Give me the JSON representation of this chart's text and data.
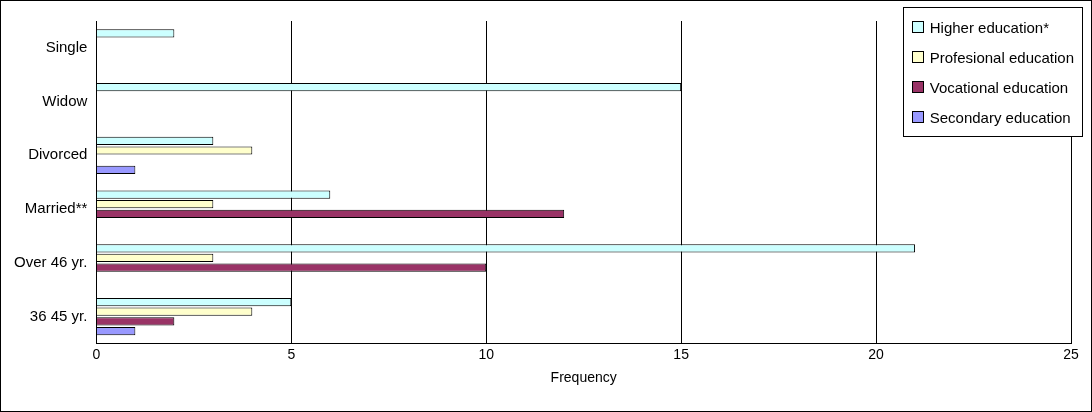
{
  "chart_data": {
    "type": "bar",
    "orientation": "horizontal",
    "xlabel": "Frequency",
    "categories": [
      "Single",
      "Widow",
      "Divorced",
      "Married**",
      "Over 46 yr.",
      "36 45 yr."
    ],
    "series": [
      {
        "name": "Higher education*",
        "color": "#ccffff",
        "values": [
          2,
          15,
          3,
          6,
          21,
          5
        ]
      },
      {
        "name": "Profesional education",
        "color": "#ffffcc",
        "values": [
          null,
          null,
          4,
          3,
          3,
          4
        ]
      },
      {
        "name": "Vocational education",
        "color": "#993366",
        "values": [
          null,
          null,
          null,
          12,
          10,
          2
        ]
      },
      {
        "name": "Secondary education",
        "color": "#9999ff",
        "values": [
          null,
          null,
          1,
          null,
          null,
          1
        ]
      }
    ],
    "xlim": [
      0,
      25
    ],
    "xticks": [
      0,
      5,
      10,
      15,
      20,
      25
    ],
    "grid": "x",
    "legend": "top right"
  }
}
